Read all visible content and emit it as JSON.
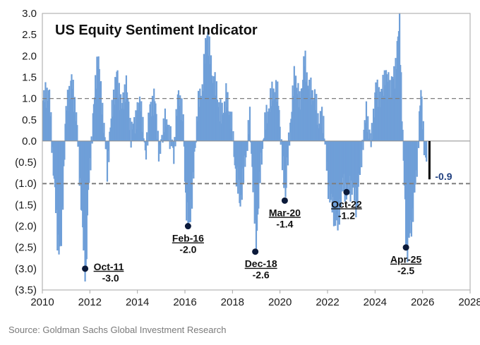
{
  "chart_data": {
    "type": "bar",
    "title": "US Equity Sentiment Indicator",
    "xlim": [
      2010,
      2028
    ],
    "ylim": [
      -3.5,
      3.0
    ],
    "x_ticks": [
      2010,
      2012,
      2014,
      2016,
      2018,
      2020,
      2022,
      2024,
      2026,
      2028
    ],
    "x_tick_labels": [
      "2010",
      "2012",
      "2014",
      "2016",
      "2018",
      "2020",
      "2022",
      "2024",
      "2026",
      "2028"
    ],
    "y_ticks": [
      3.0,
      2.5,
      2.0,
      1.5,
      1.0,
      0.5,
      0.0,
      -0.5,
      -1.0,
      -1.5,
      -2.0,
      -2.5,
      -3.0,
      -3.5
    ],
    "y_tick_labels": [
      "3.0",
      "2.5",
      "2.0",
      "1.5",
      "1.0",
      "0.5",
      "0.0",
      "(0.5)",
      "(1.0)",
      "(1.5)",
      "(2.0)",
      "(2.5)",
      "(3.0)",
      "(3.5)"
    ],
    "reference_lines": [
      1.0,
      -1.0
    ],
    "bar_color": "#6f9fd8",
    "marker_color": "#0b1a3a",
    "current_color": "#000000",
    "current_label_color": "#1f3f7f",
    "series": [
      {
        "name": "US Equity Sentiment Indicator",
        "x": [
          2010.0,
          2010.25,
          2010.45,
          2010.6,
          2010.75,
          2010.95,
          2011.2,
          2011.4,
          2011.6,
          2011.72,
          2011.8,
          2011.9,
          2012.1,
          2012.3,
          2012.5,
          2012.7,
          2012.9,
          2013.1,
          2013.3,
          2013.5,
          2013.7,
          2013.9,
          2014.1,
          2014.3,
          2014.5,
          2014.7,
          2014.9,
          2015.1,
          2015.3,
          2015.5,
          2015.7,
          2015.9,
          2016.0,
          2016.13,
          2016.3,
          2016.5,
          2016.7,
          2016.9,
          2017.1,
          2017.3,
          2017.5,
          2017.7,
          2017.9,
          2018.1,
          2018.3,
          2018.5,
          2018.7,
          2018.85,
          2018.96,
          2019.1,
          2019.3,
          2019.5,
          2019.7,
          2019.9,
          2020.05,
          2020.2,
          2020.4,
          2020.6,
          2020.8,
          2021.0,
          2021.2,
          2021.4,
          2021.6,
          2021.8,
          2022.0,
          2022.2,
          2022.4,
          2022.6,
          2022.8,
          2023.0,
          2023.2,
          2023.4,
          2023.6,
          2023.8,
          2024.0,
          2024.2,
          2024.4,
          2024.6,
          2024.8,
          2025.0,
          2025.15,
          2025.3,
          2025.5,
          2025.7,
          2025.9,
          2026.05,
          2026.2
        ],
        "values": [
          0.8,
          1.2,
          -0.6,
          -2.1,
          -2.6,
          0.5,
          1.3,
          0.6,
          -1.2,
          -2.6,
          -3.0,
          -1.2,
          0.4,
          1.9,
          0.7,
          -0.5,
          0.9,
          1.6,
          0.6,
          1.2,
          0.2,
          0.7,
          1.1,
          -0.4,
          0.6,
          0.9,
          -0.3,
          0.7,
          0.3,
          -0.4,
          1.0,
          0.4,
          -1.3,
          -2.0,
          -0.9,
          0.8,
          1.1,
          2.5,
          1.6,
          1.3,
          0.7,
          1.0,
          0.4,
          -0.8,
          -1.4,
          -0.3,
          0.6,
          -1.2,
          -2.6,
          -1.2,
          0.2,
          0.9,
          1.4,
          1.1,
          -0.5,
          -1.4,
          0.3,
          1.7,
          1.0,
          2.0,
          1.1,
          0.9,
          0.4,
          0.6,
          -0.9,
          -1.6,
          -2.1,
          -1.2,
          -1.2,
          -0.9,
          -1.4,
          -0.3,
          0.5,
          -0.2,
          1.3,
          1.2,
          1.7,
          1.2,
          1.4,
          2.7,
          -0.2,
          -2.5,
          -1.8,
          -0.9,
          1.0,
          -0.3,
          -0.9
        ]
      }
    ],
    "annotations": [
      {
        "date": "Oct-11",
        "value": "-3.0",
        "x": 2011.8,
        "y": -3.0
      },
      {
        "date": "Feb-16",
        "value": "-2.0",
        "x": 2016.13,
        "y": -2.0
      },
      {
        "date": "Dec-18",
        "value": "-2.6",
        "x": 2018.96,
        "y": -2.6
      },
      {
        "date": "Mar-20",
        "value": "-1.4",
        "x": 2020.2,
        "y": -1.4
      },
      {
        "date": "Oct-22",
        "value": "-1.2",
        "x": 2022.8,
        "y": -1.2
      },
      {
        "date": "Apr-25",
        "value": "-2.5",
        "x": 2025.3,
        "y": -2.5
      }
    ],
    "current": {
      "value": -0.9,
      "label": "-0.9",
      "x": 2026.2
    }
  },
  "source": "Source: Goldman Sachs Global Investment Research"
}
